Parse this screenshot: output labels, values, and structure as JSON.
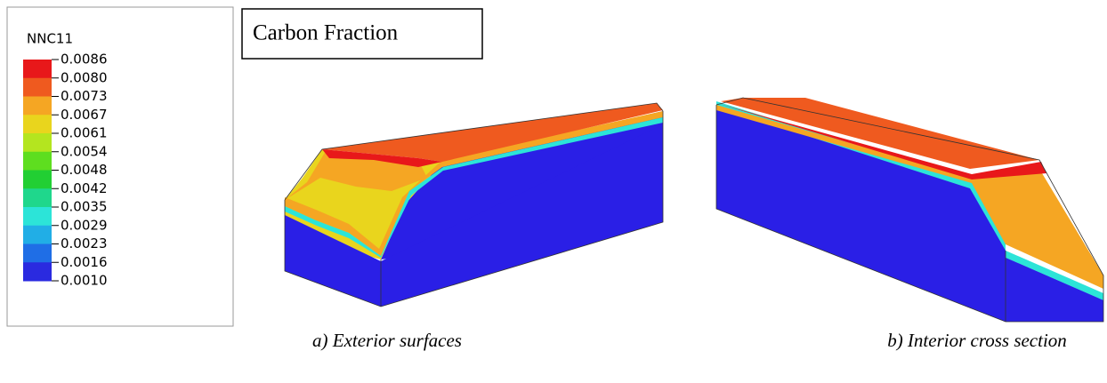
{
  "legend": {
    "title": "NNC11",
    "labels": [
      "0.0086",
      "0.0080",
      "0.0073",
      "0.0067",
      "0.0061",
      "0.0054",
      "0.0048",
      "0.0042",
      "0.0035",
      "0.0029",
      "0.0023",
      "0.0016",
      "0.0010"
    ],
    "colors": [
      "#e8181a",
      "#ef5a1f",
      "#f5a623",
      "#e9d51d",
      "#b4e51f",
      "#5ede1f",
      "#22cf33",
      "#1fd78c",
      "#2ce4d8",
      "#21aee6",
      "#1f6ee6",
      "#2a2ae0"
    ]
  },
  "title": "Carbon Fraction",
  "captions": [
    "a) Exterior surfaces",
    "b) Interior cross section"
  ]
}
